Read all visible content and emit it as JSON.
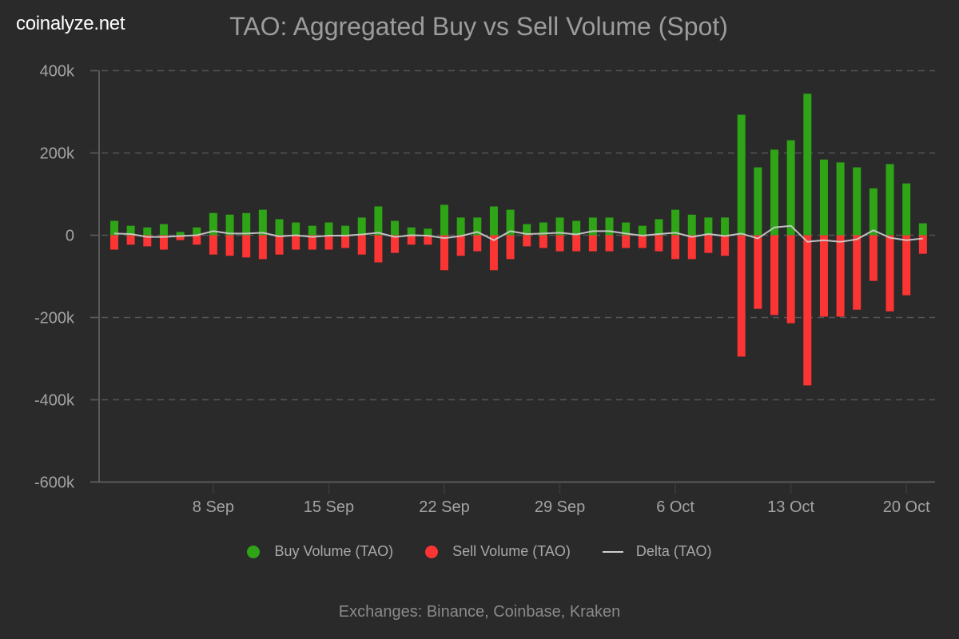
{
  "brand": "coinalyze.net",
  "footer": "Exchanges: Binance, Coinbase, Kraken",
  "colors": {
    "background": "#2a2a2a",
    "buy": "#2ea416",
    "sell": "#fb3434",
    "delta": "#cfcfcf",
    "grid": "#555555",
    "axis": "#5a5a5a"
  },
  "chart_data": {
    "type": "bar",
    "title": "TAO: Aggregated Buy vs Sell Volume (Spot)",
    "xlabel": "",
    "ylabel": "",
    "ylim": [
      -600000,
      400000
    ],
    "yticks": [
      400000,
      200000,
      0,
      -200000,
      -400000,
      -600000
    ],
    "ytick_labels": [
      "400k",
      "200k",
      "0",
      "-200k",
      "-400k",
      "-600k"
    ],
    "grid": true,
    "legend_position": "bottom",
    "x": [
      "2 Sep",
      "3 Sep",
      "4 Sep",
      "5 Sep",
      "6 Sep",
      "7 Sep",
      "8 Sep",
      "9 Sep",
      "10 Sep",
      "11 Sep",
      "12 Sep",
      "13 Sep",
      "14 Sep",
      "15 Sep",
      "16 Sep",
      "17 Sep",
      "18 Sep",
      "19 Sep",
      "20 Sep",
      "21 Sep",
      "22 Sep",
      "23 Sep",
      "24 Sep",
      "25 Sep",
      "26 Sep",
      "27 Sep",
      "28 Sep",
      "29 Sep",
      "30 Sep",
      "1 Oct",
      "2 Oct",
      "3 Oct",
      "4 Oct",
      "5 Oct",
      "6 Oct",
      "7 Oct",
      "8 Oct",
      "9 Oct",
      "10 Oct",
      "11 Oct",
      "12 Oct",
      "13 Oct",
      "14 Oct",
      "15 Oct",
      "16 Oct",
      "17 Oct",
      "18 Oct",
      "19 Oct",
      "20 Oct",
      "21 Oct"
    ],
    "xticks": [
      {
        "label": "8 Sep",
        "index": 6
      },
      {
        "label": "15 Sep",
        "index": 13
      },
      {
        "label": "22 Sep",
        "index": 20
      },
      {
        "label": "29 Sep",
        "index": 27
      },
      {
        "label": "6 Oct",
        "index": 34
      },
      {
        "label": "13 Oct",
        "index": 41
      },
      {
        "label": "20 Oct",
        "index": 48
      }
    ],
    "series": [
      {
        "name": "Buy Volume (TAO)",
        "kind": "bar",
        "color": "#2ea416",
        "values": [
          35000,
          23000,
          19000,
          27000,
          8000,
          19000,
          54000,
          50000,
          54000,
          62000,
          39000,
          31000,
          23000,
          31000,
          23000,
          43000,
          70000,
          35000,
          19000,
          16000,
          74000,
          43000,
          43000,
          70000,
          62000,
          27000,
          31000,
          43000,
          35000,
          43000,
          43000,
          31000,
          23000,
          39000,
          62000,
          50000,
          43000,
          43000,
          293000,
          165000,
          208000,
          231000,
          344000,
          184000,
          177000,
          165000,
          114000,
          173000,
          126000,
          29000
        ]
      },
      {
        "name": "Sell Volume (TAO)",
        "kind": "bar",
        "color": "#fb3434",
        "values": [
          -35000,
          -23000,
          -27000,
          -35000,
          -12000,
          -23000,
          -47000,
          -50000,
          -54000,
          -58000,
          -47000,
          -35000,
          -35000,
          -35000,
          -31000,
          -47000,
          -66000,
          -43000,
          -23000,
          -23000,
          -85000,
          -50000,
          -39000,
          -85000,
          -58000,
          -27000,
          -31000,
          -39000,
          -39000,
          -39000,
          -39000,
          -31000,
          -31000,
          -39000,
          -58000,
          -58000,
          -43000,
          -50000,
          -295000,
          -179000,
          -194000,
          -214000,
          -365000,
          -198000,
          -198000,
          -181000,
          -111000,
          -185000,
          -146000,
          -45000
        ]
      },
      {
        "name": "Delta (TAO)",
        "kind": "line",
        "color": "#cfcfcf",
        "values": [
          4000,
          3000,
          -4000,
          -4000,
          -2000,
          0,
          10000,
          4000,
          4000,
          6000,
          -3000,
          0,
          -4000,
          -1000,
          -1000,
          2000,
          6000,
          -4000,
          0,
          -1000,
          -7000,
          -2000,
          8000,
          -12000,
          10000,
          3000,
          4000,
          6000,
          2000,
          10000,
          10000,
          4000,
          -1000,
          3000,
          6000,
          -4000,
          3000,
          -2000,
          4000,
          -8000,
          19000,
          23000,
          -16000,
          -12000,
          -16000,
          -10000,
          12000,
          -6000,
          -12000,
          -8000
        ]
      }
    ]
  }
}
